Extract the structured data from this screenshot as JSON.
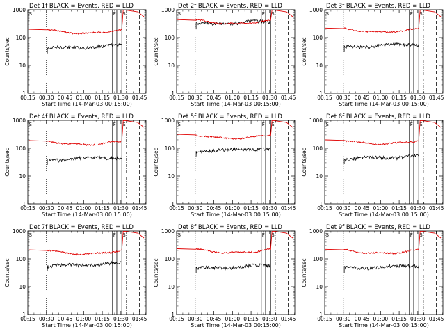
{
  "chart_data": [
    {
      "type": "line",
      "title": "Det 1f BLACK = Events, RED = LLD",
      "xlabel": "Start Time (14-Mar-03 00:15:00)",
      "ylabel": "Counts/sec",
      "yscale": "log",
      "ylim": [
        1,
        1000
      ],
      "xticks": [
        "00:15",
        "00:30",
        "00:45",
        "01:00",
        "01:15",
        "01:30",
        "01:45"
      ],
      "yticks": [
        "1",
        "10",
        "100",
        "1000"
      ],
      "events_level": 45,
      "lld_level": 190
    },
    {
      "type": "line",
      "title": "Det 2f BLACK = Events, RED = LLD",
      "xlabel": "Start Time (14-Mar-03 00:15:00)",
      "ylabel": "Counts/sec",
      "yscale": "log",
      "ylim": [
        1,
        1000
      ],
      "xticks": [
        "00:15",
        "00:30",
        "00:45",
        "01:00",
        "01:15",
        "01:30",
        "01:45"
      ],
      "yticks": [
        "1",
        "10",
        "100",
        "1000"
      ],
      "events_level": 330,
      "lld_level": 420
    },
    {
      "type": "line",
      "title": "Det 3f BLACK = Events, RED = LLD",
      "xlabel": "Start Time (14-Mar-03 00:15:00)",
      "ylabel": "Counts/sec",
      "yscale": "log",
      "ylim": [
        1,
        1000
      ],
      "xticks": [
        "00:15",
        "00:30",
        "00:45",
        "01:00",
        "01:15",
        "01:30",
        "01:45"
      ],
      "yticks": [
        "1",
        "10",
        "100",
        "1000"
      ],
      "events_level": 50,
      "lld_level": 210
    },
    {
      "type": "line",
      "title": "Det 4f BLACK = Events, RED = LLD",
      "xlabel": "Start Time (14-Mar-03 00:15:00)",
      "ylabel": "Counts/sec",
      "yscale": "log",
      "ylim": [
        1,
        1000
      ],
      "xticks": [
        "00:15",
        "00:30",
        "00:45",
        "01:00",
        "01:15",
        "01:30",
        "01:45"
      ],
      "yticks": [
        "1",
        "10",
        "100",
        "1000"
      ],
      "events_level": 42,
      "lld_level": 180
    },
    {
      "type": "line",
      "title": "Det 5f BLACK = Events, RED = LLD",
      "xlabel": "Start Time (14-Mar-03 00:15:00)",
      "ylabel": "Counts/sec",
      "yscale": "log",
      "ylim": [
        1,
        1000
      ],
      "xticks": [
        "00:15",
        "00:30",
        "00:45",
        "01:00",
        "01:15",
        "01:30",
        "01:45"
      ],
      "yticks": [
        "1",
        "10",
        "100",
        "1000"
      ],
      "events_level": 85,
      "lld_level": 300
    },
    {
      "type": "line",
      "title": "Det 6f BLACK = Events, RED = LLD",
      "xlabel": "Start Time (14-Mar-03 00:15:00)",
      "ylabel": "Counts/sec",
      "yscale": "log",
      "ylim": [
        1,
        1000
      ],
      "xticks": [
        "00:15",
        "00:30",
        "00:45",
        "01:00",
        "01:15",
        "01:30",
        "01:45"
      ],
      "yticks": [
        "1",
        "10",
        "100",
        "1000"
      ],
      "events_level": 45,
      "lld_level": 190
    },
    {
      "type": "line",
      "title": "Det 7f BLACK = Events, RED = LLD",
      "xlabel": "Start Time (14-Mar-03 00:15:00)",
      "ylabel": "Counts/sec",
      "yscale": "log",
      "ylim": [
        1,
        1000
      ],
      "xticks": [
        "00:15",
        "00:30",
        "00:45",
        "01:00",
        "01:15",
        "01:30",
        "01:45"
      ],
      "yticks": [
        "1",
        "10",
        "100",
        "1000"
      ],
      "events_level": 60,
      "lld_level": 200
    },
    {
      "type": "line",
      "title": "Det 8f BLACK = Events, RED = LLD",
      "xlabel": "Start Time (14-Mar-03 00:15:00)",
      "ylabel": "Counts/sec",
      "yscale": "log",
      "ylim": [
        1,
        1000
      ],
      "xticks": [
        "00:15",
        "00:30",
        "00:45",
        "01:00",
        "01:15",
        "01:30",
        "01:45"
      ],
      "yticks": [
        "1",
        "10",
        "100",
        "1000"
      ],
      "events_level": 50,
      "lld_level": 220
    },
    {
      "type": "line",
      "title": "Det 9f BLACK = Events, RED = LLD",
      "xlabel": "Start Time (14-Mar-03 00:15:00)",
      "ylabel": "Counts/sec",
      "yscale": "log",
      "ylim": [
        1,
        1000
      ],
      "xticks": [
        "00:15",
        "00:30",
        "00:45",
        "01:00",
        "01:15",
        "01:30",
        "01:45"
      ],
      "yticks": [
        "1",
        "10",
        "100",
        "1000"
      ],
      "events_level": 50,
      "lld_level": 210
    }
  ],
  "colors": {
    "events": "#000000",
    "lld": "#e00000",
    "axis": "#000000"
  }
}
